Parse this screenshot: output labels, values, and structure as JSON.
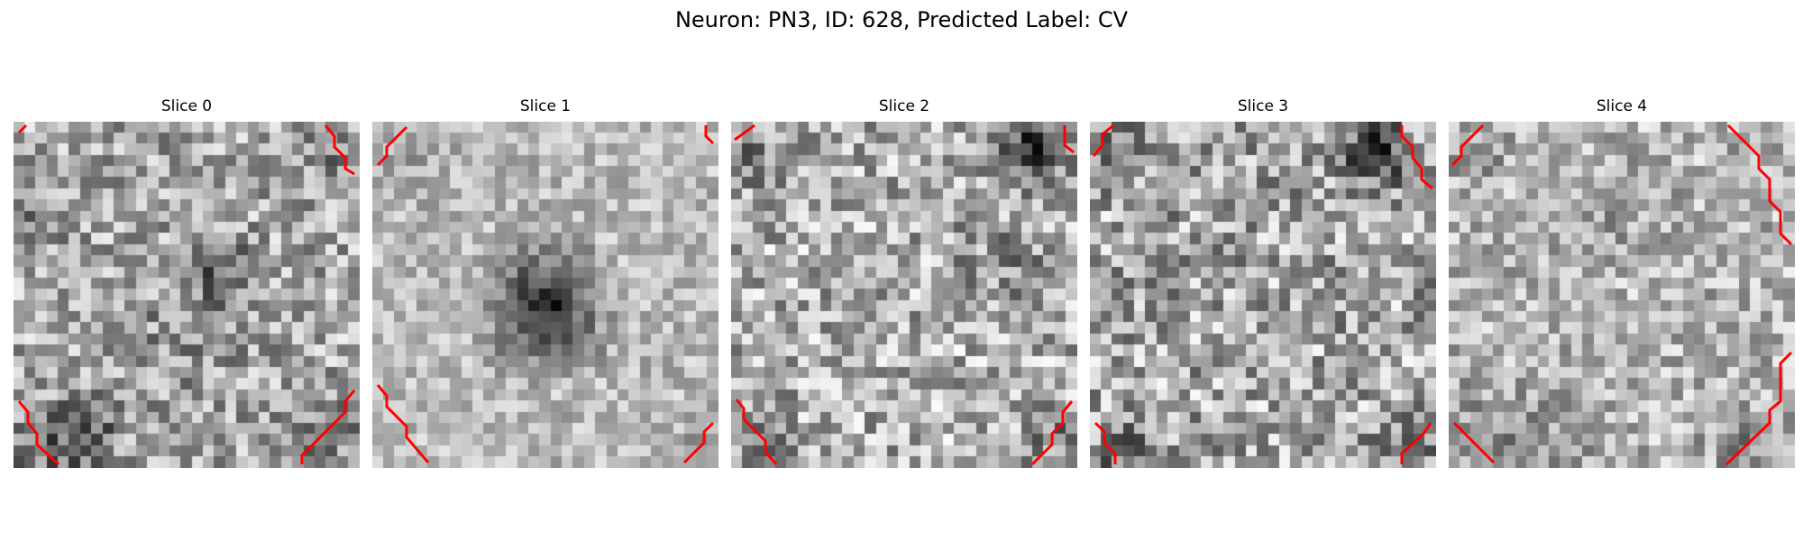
{
  "figure": {
    "title": "Neuron: PN3, ID: 628, Predicted Label: CV"
  },
  "slices": [
    {
      "title": "Slice 0"
    },
    {
      "title": "Slice 1"
    },
    {
      "title": "Slice 2"
    },
    {
      "title": "Slice 3"
    },
    {
      "title": "Slice 4"
    }
  ],
  "colors": {
    "contour": "#ff0000",
    "colormap": "gray"
  }
}
